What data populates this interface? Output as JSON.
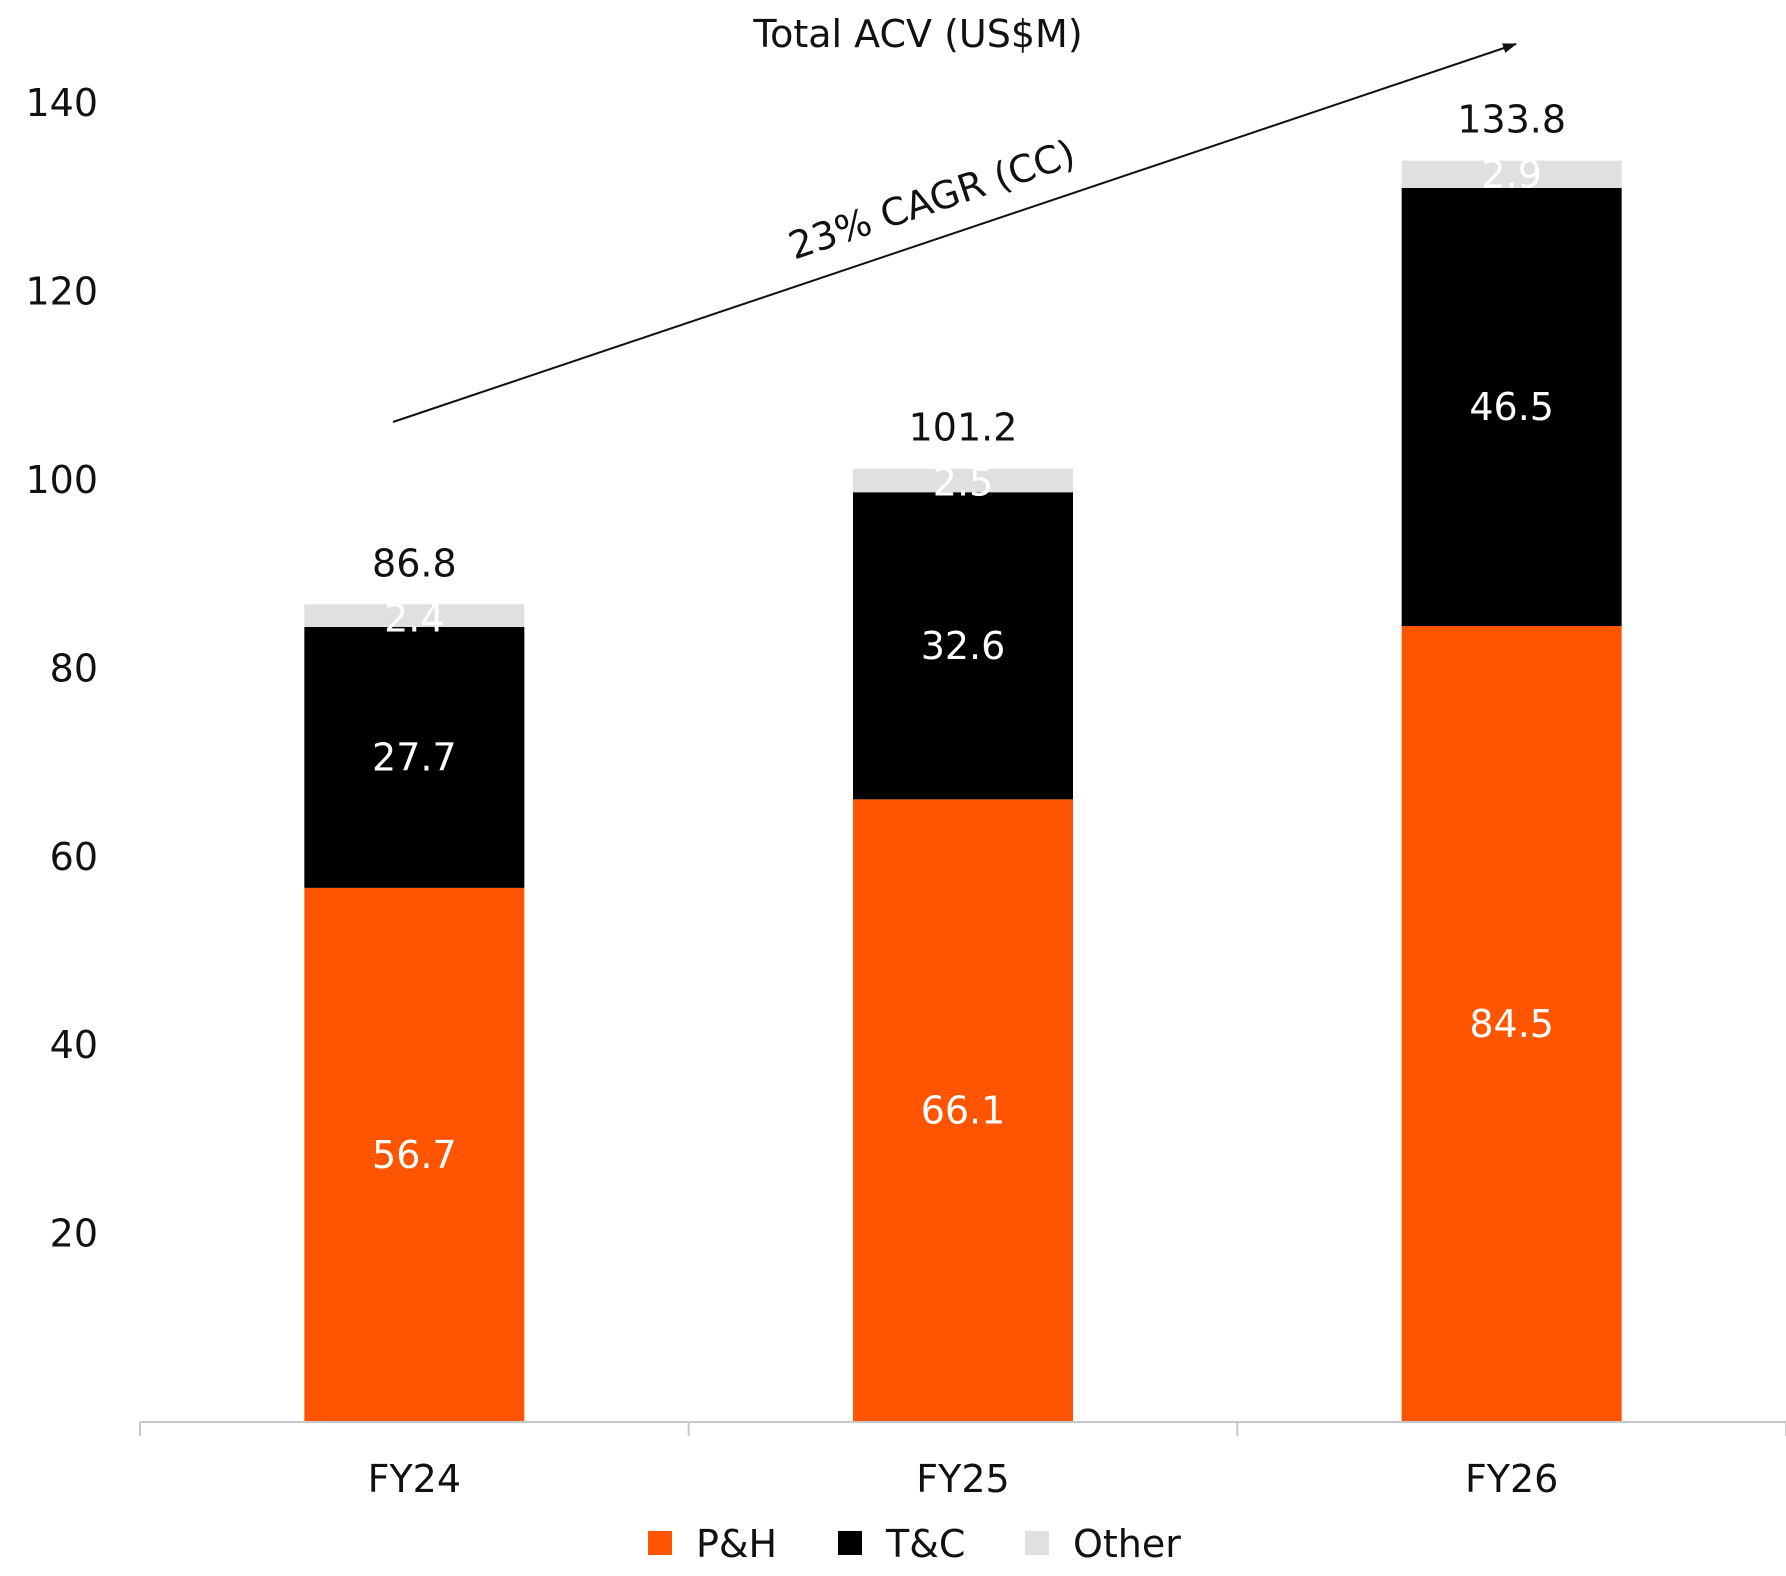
{
  "chart_data": {
    "type": "bar",
    "stacked": true,
    "title": "Total ACV (US$M)",
    "categories": [
      "FY24",
      "FY25",
      "FY26"
    ],
    "series": [
      {
        "name": "P&H",
        "values": [
          56.7,
          66.1,
          84.5
        ],
        "color": "#ff5500",
        "label_color": "#ffffff"
      },
      {
        "name": "T&C",
        "values": [
          27.7,
          32.6,
          46.5
        ],
        "color": "#000000",
        "label_color": "#ffffff"
      },
      {
        "name": "Other",
        "values": [
          2.4,
          2.5,
          2.9
        ],
        "color": "#e0e0e0",
        "label_color": "#111111"
      }
    ],
    "totals": [
      "86.8",
      "101.2",
      "133.8"
    ],
    "y_ticks": [
      20,
      40,
      60,
      80,
      100,
      120,
      140
    ],
    "ylim": [
      0,
      140
    ],
    "grid": false,
    "legend_position": "bottom-center",
    "annotation": {
      "text": "23% CAGR (CC)",
      "from_category": "FY24",
      "to_category": "FY26"
    }
  }
}
